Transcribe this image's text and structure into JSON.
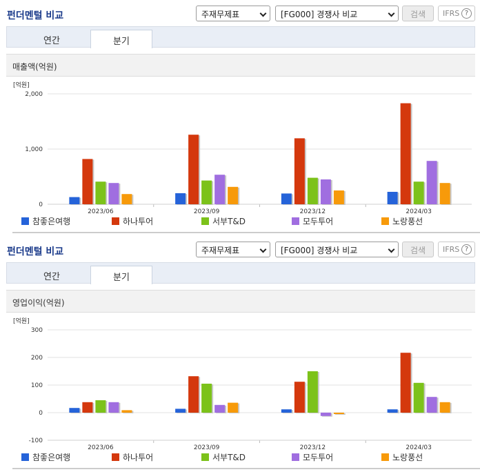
{
  "sections": [
    {
      "title": "펀더멘털 비교",
      "select1": "주재무제표",
      "select2": "[FG000] 경쟁사 비교",
      "search_label": "검색",
      "ifrs_label": "IFRS",
      "help_label": "?",
      "tabs": [
        "연간",
        "분기"
      ],
      "active_tab": 1,
      "metric_label": "매출액(억원)"
    },
    {
      "title": "펀더멘털 비교",
      "select1": "주재무제표",
      "select2": "[FG000] 경쟁사 비교",
      "search_label": "검색",
      "ifrs_label": "IFRS",
      "help_label": "?",
      "tabs": [
        "연간",
        "분기"
      ],
      "active_tab": 1,
      "metric_label": "영업이익(억원)"
    }
  ],
  "colors": {
    "참좋은여행": "#2563d9",
    "하나투어": "#d4380d",
    "서부T&D": "#7cc21a",
    "모두투어": "#a06ee0",
    "노랑풍선": "#f79a0a",
    "title": "#1a3a8a"
  },
  "chart_data": [
    {
      "type": "bar",
      "unit_label": "[억원]",
      "categories": [
        "2023/06",
        "2023/09",
        "2023/12",
        "2024/03"
      ],
      "yticks": [
        0,
        1000,
        2000
      ],
      "ytick_labels": [
        "0",
        "1,000",
        "2,000"
      ],
      "ylim": [
        0,
        2000
      ],
      "series": [
        {
          "name": "참좋은여행",
          "values": [
            130,
            200,
            195,
            225
          ]
        },
        {
          "name": "하나투어",
          "values": [
            820,
            1260,
            1195,
            1830
          ]
        },
        {
          "name": "서부T&D",
          "values": [
            410,
            430,
            480,
            410
          ]
        },
        {
          "name": "모두투어",
          "values": [
            385,
            535,
            450,
            785
          ]
        },
        {
          "name": "노랑풍선",
          "values": [
            185,
            315,
            250,
            385
          ]
        }
      ],
      "legend": "bottom"
    },
    {
      "type": "bar",
      "unit_label": "[억원]",
      "categories": [
        "2023/06",
        "2023/09",
        "2023/12",
        "2024/03"
      ],
      "yticks": [
        -100,
        0,
        100,
        200,
        300
      ],
      "ytick_labels": [
        "-100",
        "0",
        "100",
        "200",
        "300"
      ],
      "ylim": [
        -100,
        300
      ],
      "series": [
        {
          "name": "참좋은여행",
          "values": [
            17,
            14,
            12,
            12
          ]
        },
        {
          "name": "하나투어",
          "values": [
            38,
            132,
            112,
            217
          ]
        },
        {
          "name": "서부T&D",
          "values": [
            45,
            105,
            150,
            108
          ]
        },
        {
          "name": "모두투어",
          "values": [
            38,
            28,
            -12,
            57
          ]
        },
        {
          "name": "노랑풍선",
          "values": [
            9,
            36,
            -5,
            38
          ]
        }
      ],
      "legend": "bottom"
    }
  ]
}
